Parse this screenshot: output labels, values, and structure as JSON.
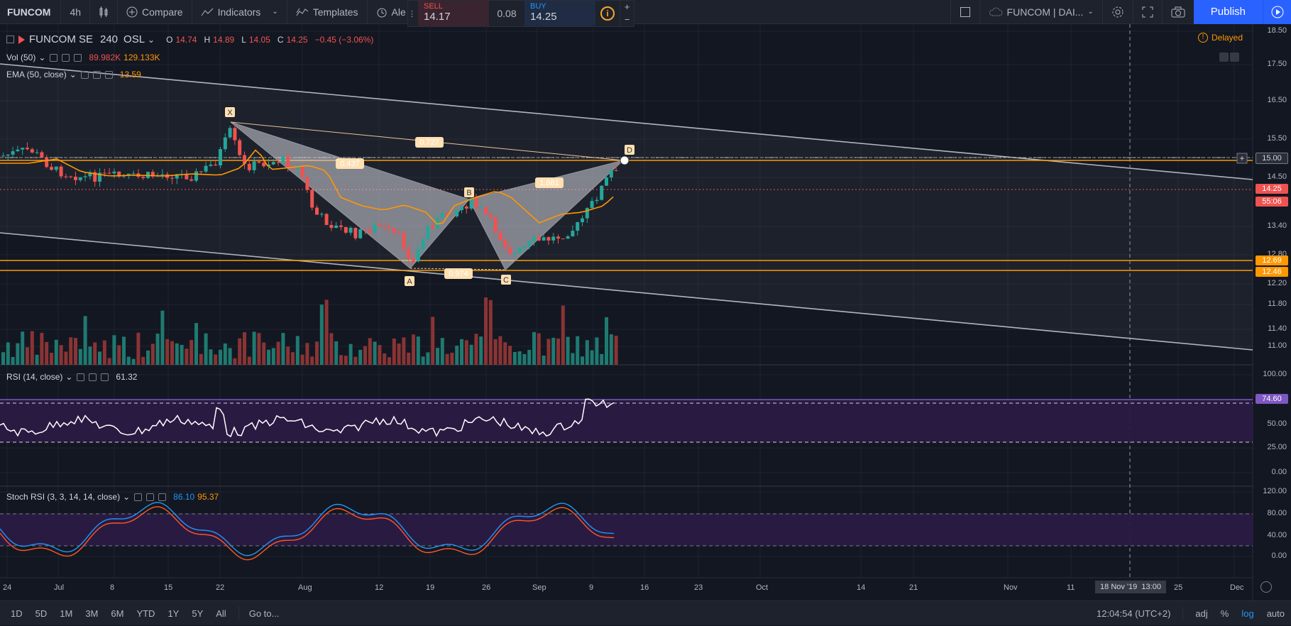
{
  "topbar": {
    "symbol": "FUNCOM",
    "interval": "4h",
    "compare": "Compare",
    "indicators": "Indicators",
    "templates": "Templates",
    "alert": "Ale",
    "layout_name": "FUNCOM | DAI...",
    "publish": "Publish"
  },
  "trade": {
    "sell_label": "SELL",
    "sell_price": "14.17",
    "spread": "0.08",
    "buy_label": "BUY",
    "buy_price": "14.25",
    "plus": "+",
    "minus": "−"
  },
  "legend": {
    "main_name": "FUNCOM SE",
    "main_interval": "240",
    "main_exchange": "OSL",
    "o_label": "O",
    "o": "14.74",
    "h_label": "H",
    "h": "14.89",
    "l_label": "L",
    "l": "14.05",
    "c_label": "C",
    "c": "14.25",
    "change": "−0.45 (−3.06%)",
    "vol_name": "Vol (50)",
    "vol_v1": "89.982K",
    "vol_v2": "129.133K",
    "ema_name": "EMA (50, close)",
    "ema_v": "13.59",
    "delayed": "Delayed",
    "rsi_name": "RSI (14, close)",
    "rsi_v": "61.32",
    "stoch_name": "Stoch RSI (3, 3, 14, 14, close)",
    "stoch_k": "86.10",
    "stoch_d": "95.37"
  },
  "price_axis": [
    "18.50",
    "17.50",
    "16.50",
    "15.50",
    "15.00",
    "14.50",
    "13.40",
    "12.80",
    "12.20",
    "11.80",
    "11.40",
    "11.00"
  ],
  "price_tags": {
    "p1500": "15.00",
    "p1425": "14.25",
    "countdown": "55:06",
    "p1269": "12.69",
    "p1246": "12.46"
  },
  "rsi_axis": [
    "100.00",
    "50.00",
    "25.00",
    "0.00"
  ],
  "rsi_tag": "74.60",
  "stoch_axis": [
    "120.00",
    "80.00",
    "40.00",
    "0.00"
  ],
  "time_axis": [
    "24",
    "Jul",
    "8",
    "15",
    "22",
    "Aug",
    "12",
    "19",
    "26",
    "Sep",
    "9",
    "16",
    "23",
    "Oct",
    "14",
    "21",
    "Nov",
    "11",
    "25",
    "Dec"
  ],
  "crosshair_time": "18 Nov '19  13:00",
  "pattern": {
    "X": "X",
    "A": "A",
    "B": "B",
    "C": "C",
    "D": "D",
    "r1": "0.727",
    "r2": "0.437",
    "r3": "1.681",
    "r4": "0.974"
  },
  "bottombar": {
    "ranges": [
      "1D",
      "5D",
      "1M",
      "3M",
      "6M",
      "YTD",
      "1Y",
      "5Y",
      "All"
    ],
    "goto": "Go to...",
    "clock": "12:04:54 (UTC+2)",
    "adj": "adj",
    "pct": "%",
    "log": "log",
    "auto": "auto"
  },
  "colors": {
    "up": "#26a69a",
    "down": "#ef5350",
    "ema": "#ff9800",
    "accent": "#2962ff",
    "rsi_band": "#2a1a45"
  }
}
